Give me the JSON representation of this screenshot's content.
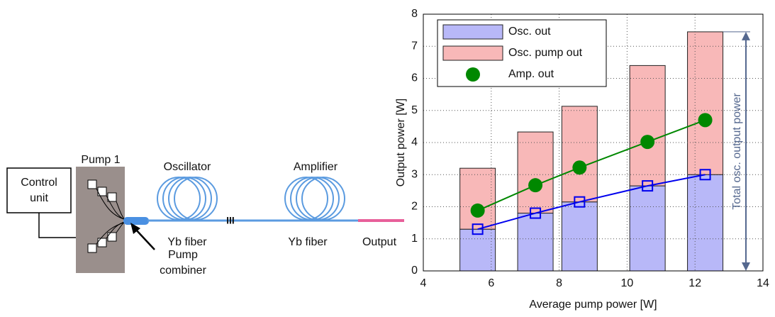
{
  "diagram": {
    "control": [
      "Control",
      "unit"
    ],
    "pump": "Pump 1",
    "oscillator": "Oscillator",
    "amplifier": "Amplifier",
    "fiber1": "Yb fiber",
    "fiber2": "Yb fiber",
    "output": "Output",
    "combiner": [
      "Pump",
      "combiner"
    ],
    "splice": "III"
  },
  "chart_data": {
    "type": "bar",
    "stacked": true,
    "grid": true,
    "legend": "upper-left",
    "xlabel": "Average pump power [W]",
    "ylabel": "Output power [W]",
    "annotation": "Total osc. output power",
    "x": [
      5.6,
      7.3,
      8.6,
      10.6,
      12.3
    ],
    "xlim": [
      4,
      14
    ],
    "xticks": [
      4,
      6,
      8,
      10,
      12,
      14
    ],
    "ylim": [
      0,
      8
    ],
    "yticks": [
      0,
      1,
      2,
      3,
      4,
      5,
      6,
      7,
      8
    ],
    "series": [
      {
        "name": "Osc. out",
        "kind": "bar",
        "color": "#b8b8f8",
        "line_color": "#0000ee",
        "marker": "square",
        "values": [
          1.3,
          1.8,
          2.15,
          2.65,
          3.0
        ]
      },
      {
        "name": "Osc. pump out",
        "kind": "bar",
        "color": "#f8b8b8",
        "values": [
          1.9,
          2.53,
          2.98,
          3.75,
          4.45
        ]
      },
      {
        "name": "Amp. out",
        "kind": "line",
        "color": "#008800",
        "marker": "circle",
        "values": [
          1.88,
          2.67,
          3.22,
          4.02,
          4.7
        ]
      }
    ]
  }
}
